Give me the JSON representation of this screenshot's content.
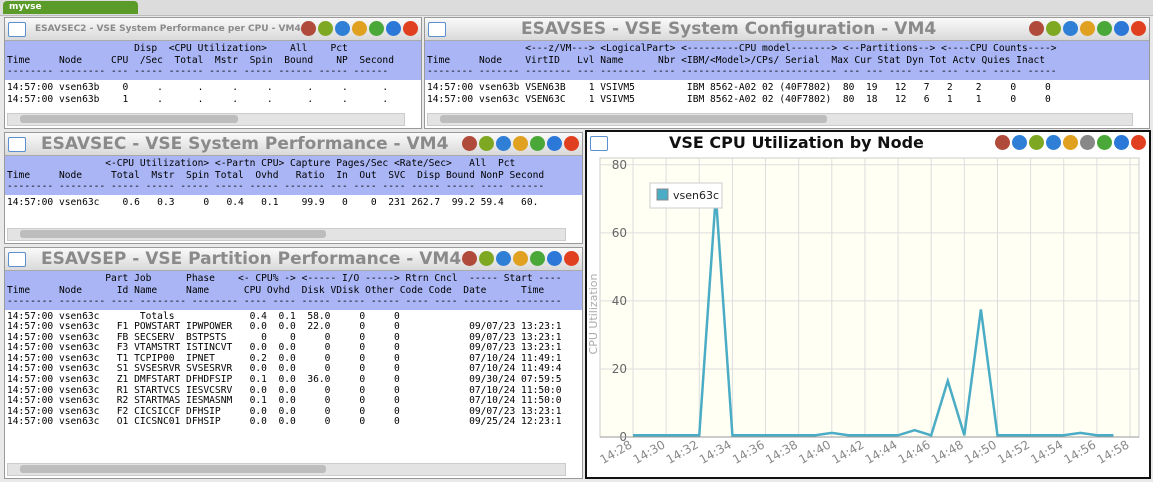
{
  "tab": "myvse",
  "panels": [
    {
      "title": "ESAVSEC2 - VSE System Performance per CPU - VM4",
      "header_lines": [
        "                      Disp  <CPU Utilization>    All    Pct",
        "Time     Node     CPU  /Sec  Total  Mstr  Spin  Bound    NP  Second",
        "-------- -------- --- ----- ------ ----- ----- ------ ----- ------"
      ],
      "rows": [
        "14:57:00 vsen63b    0     .      .     .     .      .     .      .",
        "14:57:00 vsen63b    1     .      .     .     .      .     .      ."
      ]
    },
    {
      "title": "ESAVSES - VSE System Configuration - VM4",
      "header_lines": [
        "                 <---z/VM---> <LogicalPart> <---------CPU model-------> <--Partitions--> <----CPU Counts---->",
        "Time     Node    VirtID   Lvl Name      Nbr <IBM/<Model>/CPs/ Serial  Max Cur Stat Dyn Tot Actv Quies Inact",
        "-------- ------- -------- --- -------- ---- --------------------------- --- --- ---- --- --- ---- ----- -----"
      ],
      "rows": [
        "14:57:00 vsen63b VSEN63B    1 VSIVM5         IBM 8562-A02 02 (40F7802)  80  19   12   7   2    2     0     0",
        "14:57:00 vsen63c VSEN63C    1 VSIVM5         IBM 8562-A02 02 (40F7802)  80  18   12   6   1    1     0     0"
      ]
    },
    {
      "title": "ESAVSEC - VSE System Performance - VM4",
      "header_lines": [
        "                 <-CPU Utilization> <-Partn CPU> Capture Pages/Sec <Rate/Sec>   All  Pct",
        "Time     Node     Total  Mstr  Spin Total  Ovhd   Ratio  In  Out  SVC  Disp Bound NonP Second",
        "-------- -------- ----- ----- ----- ----- ----- ------- --- ---- ---- ----- ----- ---- ------"
      ],
      "rows": [
        "14:57:00 vsen63c    0.6   0.3     0   0.4   0.1    99.9   0    0  231 262.7  99.2 59.4   60."
      ]
    },
    {
      "title": "ESAVSEP - VSE Partition Performance - VM4",
      "header_lines": [
        "                 Part Job      Phase    <- CPU% -> <----- I/O -----> Rtrn Cncl  ----- Start ----",
        "Time     Node      Id Name     Name      CPU Ovhd  Disk VDisk Other Code Code  Date      Time",
        "-------- -------- ---- -------- -------- ---- ---- ----- ----- ----- ---- ---- -------- --------"
      ],
      "rows": [
        "14:57:00 vsen63c       Totals             0.4  0.1  58.0     0     0",
        "14:57:00 vsen63c   F1 POWSTART IPWPOWER   0.0  0.0  22.0     0     0            09/07/23 13:23:1",
        "14:57:00 vsen63c   FB SECSERV  BSTPSTS      0    0     0     0     0            09/07/23 13:23:1",
        "14:57:00 vsen63c   F3 VTAMSTRT ISTINCVT   0.0  0.0     0     0     0            09/07/23 13:23:1",
        "14:57:00 vsen63c   T1 TCPIP00  IPNET      0.2  0.0     0     0     0            07/10/24 11:49:1",
        "14:57:00 vsen63c   S1 SVSESRVR SVSESRVR   0.0  0.0     0     0     0            07/10/24 11:49:4",
        "14:57:00 vsen63c   Z1 DMFSTART DFHDFSIP   0.1  0.0  36.0     0     0            09/30/24 07:59:5",
        "14:57:00 vsen63c   R1 STARTVCS IESVCSRV   0.0  0.0     0     0     0            07/10/24 11:50:0",
        "14:57:00 vsen63c   R2 STARTMAS IESMASNM   0.1  0.0     0     0     0            07/10/24 11:50:0",
        "14:57:00 vsen63c   F2 CICSICCF DFHSIP     0.0  0.0     0     0     0            09/07/23 13:23:1",
        "14:57:00 vsen63c   O1 CICSNC01 DFHSIP     0.0  0.0     0     0     0            09/25/24 12:23:1"
      ]
    }
  ],
  "chart_data": {
    "type": "line",
    "title": "VSE CPU Utilization by Node",
    "y_label": "CPU Utilization",
    "categories": [
      "14:28",
      null,
      "14:30",
      null,
      "14:32",
      null,
      "14:34",
      null,
      "14:36",
      null,
      "14:38",
      null,
      "14:40",
      null,
      "14:42",
      null,
      "14:44",
      null,
      "14:46",
      null,
      "14:48",
      null,
      "14:50",
      null,
      "14:52",
      null,
      "14:54",
      null,
      "14:56",
      null,
      "14:58"
    ],
    "series": [
      {
        "name": "vsen63c",
        "color": "#4bacc6",
        "values": [
          0.5,
          0.5,
          0.5,
          0.5,
          0.5,
          71,
          0.5,
          0.5,
          0.5,
          0.5,
          0.5,
          0.5,
          1.2,
          0.5,
          0.5,
          0.5,
          0.5,
          2,
          0.5,
          16.5,
          0.5,
          37.5,
          0.5,
          0.5,
          0.5,
          0.5,
          0.5,
          1.2,
          0.5,
          0.5,
          null
        ]
      }
    ],
    "ylim": [
      0,
      82
    ],
    "yticks": [
      0,
      20,
      40,
      60,
      80
    ],
    "grid": true,
    "legend": "upper left"
  }
}
